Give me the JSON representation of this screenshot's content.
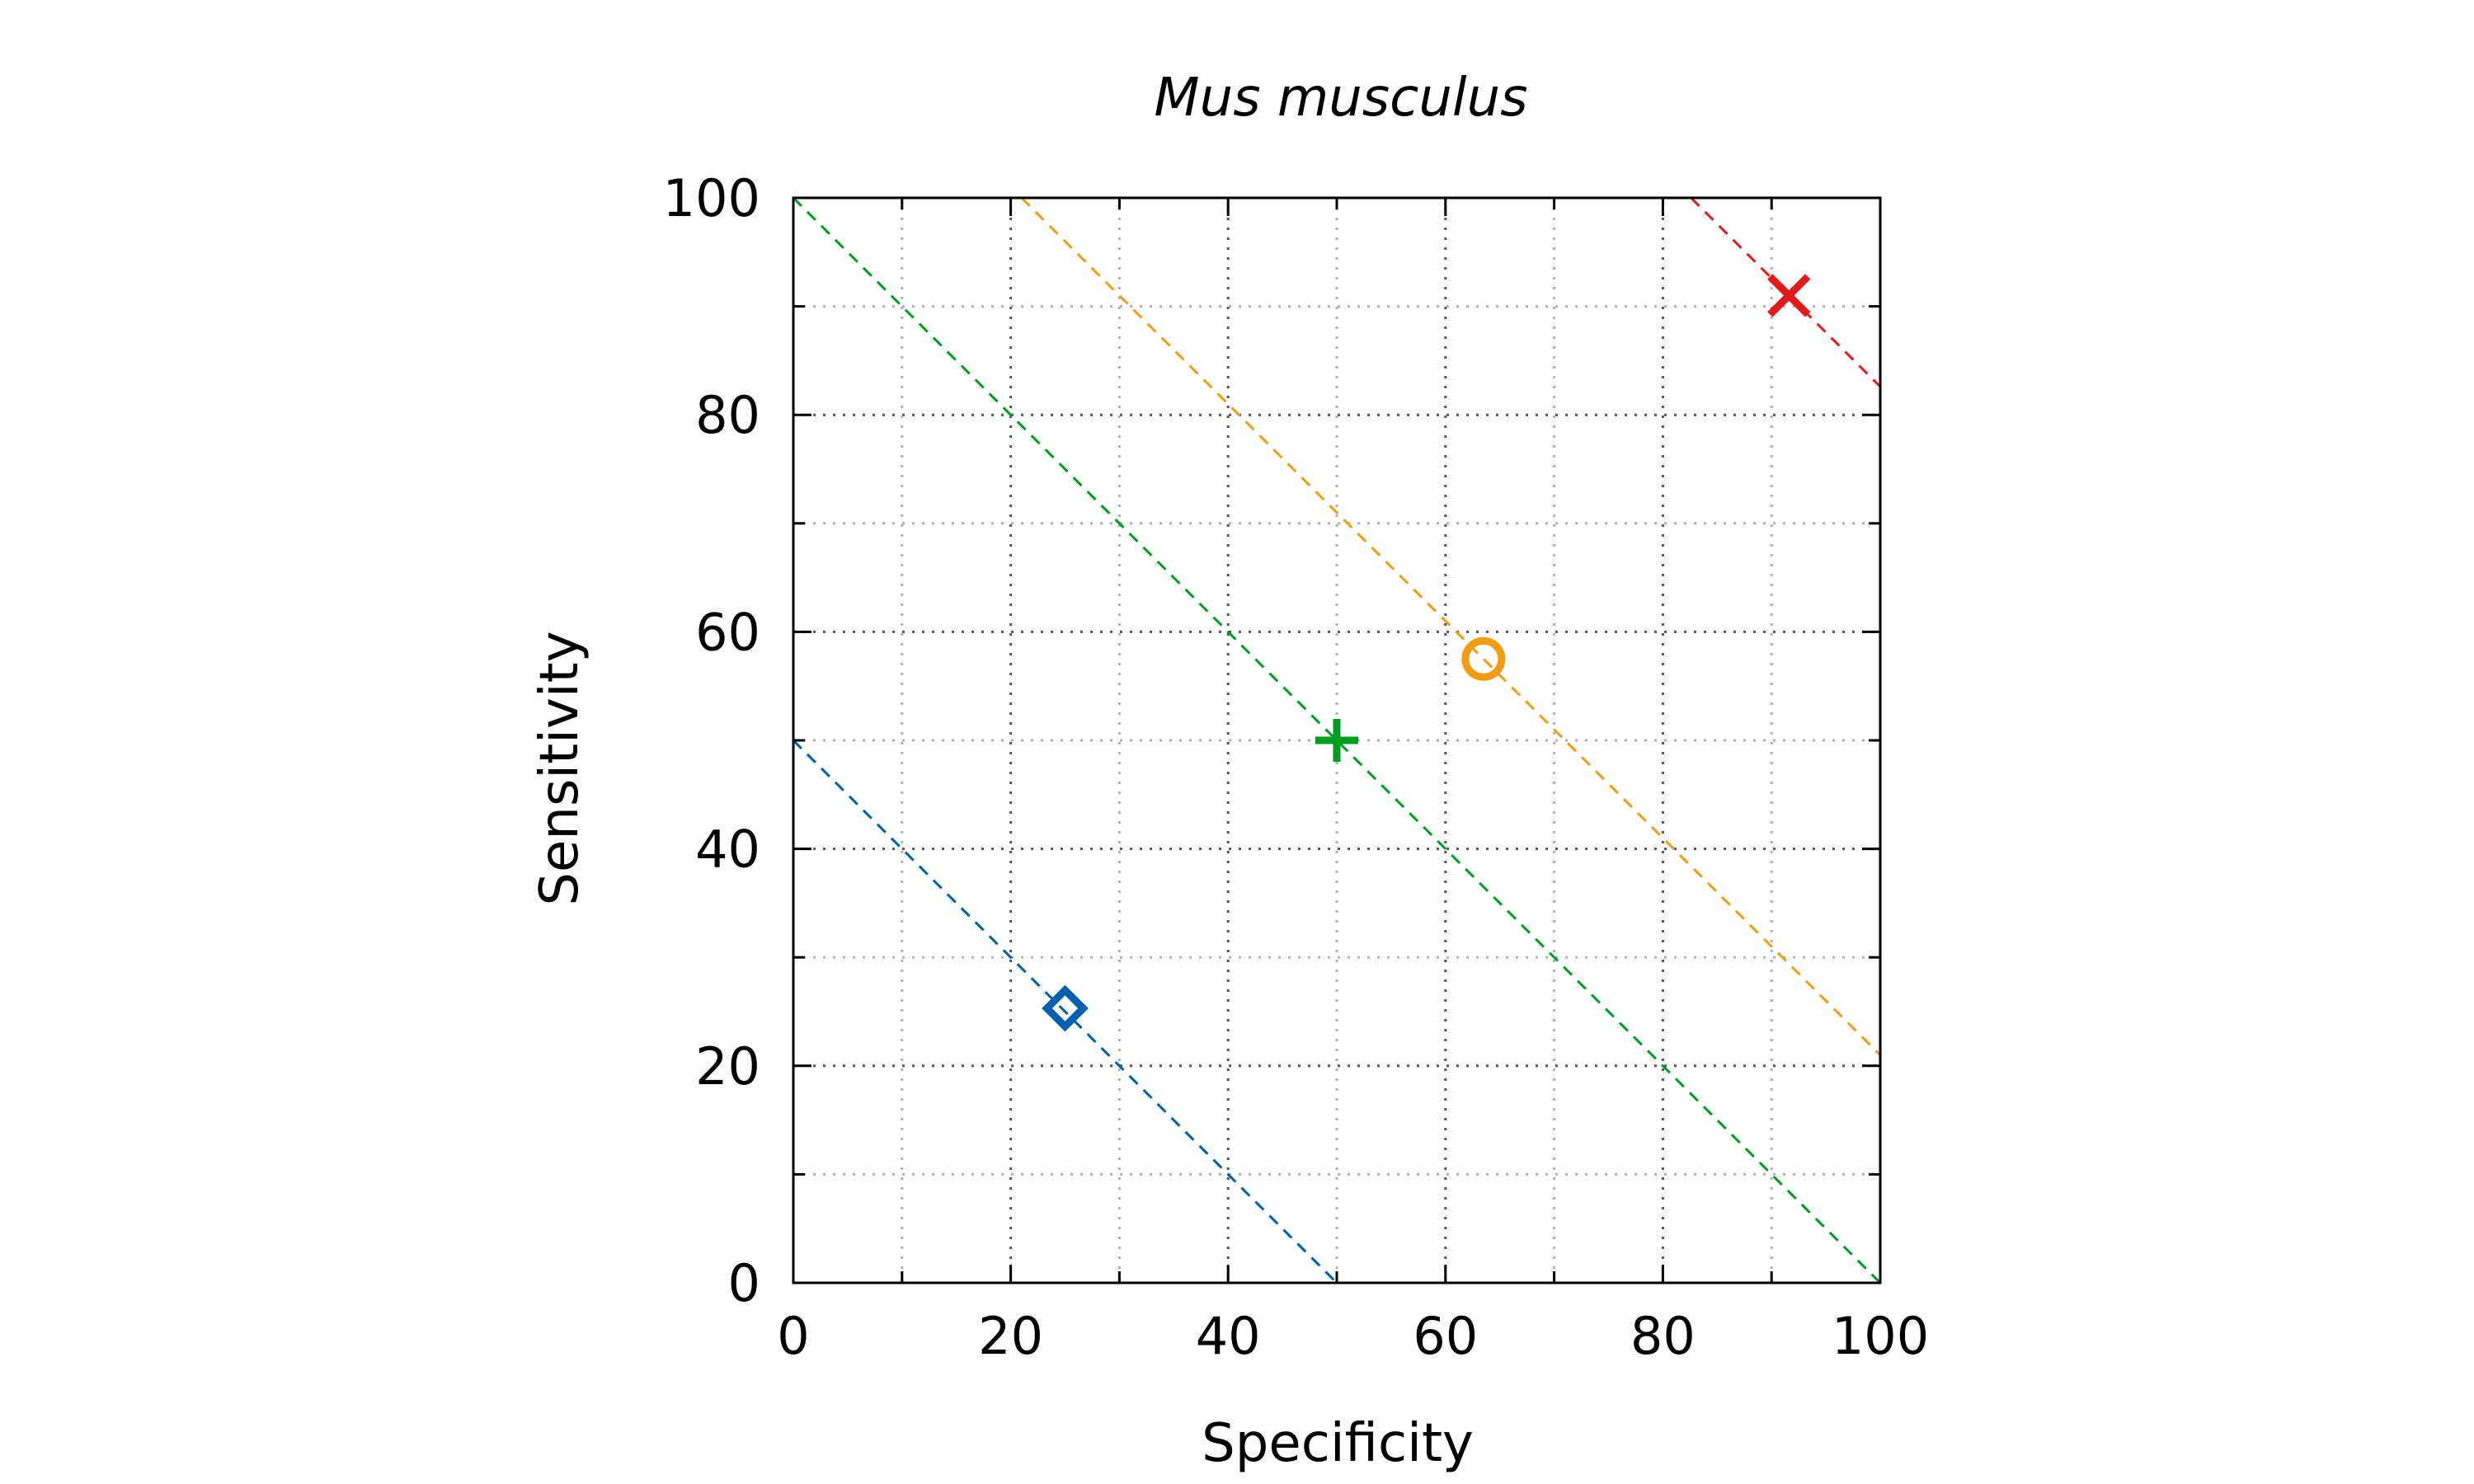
{
  "chart_data": {
    "type": "scatter",
    "title": "Mus musculus",
    "xlabel": "Specificity",
    "ylabel": "Sensitivity",
    "xlim": [
      0,
      100
    ],
    "ylim": [
      0,
      100
    ],
    "x_ticks": [
      "0",
      "20",
      "40",
      "60",
      "80",
      "100"
    ],
    "y_ticks": [
      "0",
      "20",
      "40",
      "60",
      "80",
      "100"
    ],
    "x_tick_values": [
      0,
      20,
      40,
      60,
      80,
      100
    ],
    "y_tick_values": [
      0,
      20,
      40,
      60,
      80,
      100
    ],
    "minor_tick_values": [
      10,
      30,
      50,
      70,
      90
    ],
    "grid": true,
    "legend": "none",
    "points": [
      {
        "x": 25.0,
        "y": 25.3,
        "marker": "diamond-icon",
        "color": "#0060ad"
      },
      {
        "x": 50.0,
        "y": 50.0,
        "marker": "plus-icon",
        "color": "#009e20"
      },
      {
        "x": 63.5,
        "y": 57.5,
        "marker": "circle-icon",
        "color": "#f39c12"
      },
      {
        "x": 91.6,
        "y": 91.0,
        "marker": "cross-icon",
        "color": "#e31a1c"
      }
    ],
    "reference_lines": [
      {
        "sum": 50,
        "color": "#0060ad",
        "style": "dashed"
      },
      {
        "sum": 100,
        "color": "#009e20",
        "style": "dashed"
      },
      {
        "sum": 121,
        "color": "#f39c12",
        "style": "dashed"
      },
      {
        "sum": 182.6,
        "color": "#e31a1c",
        "style": "dashed"
      }
    ]
  }
}
